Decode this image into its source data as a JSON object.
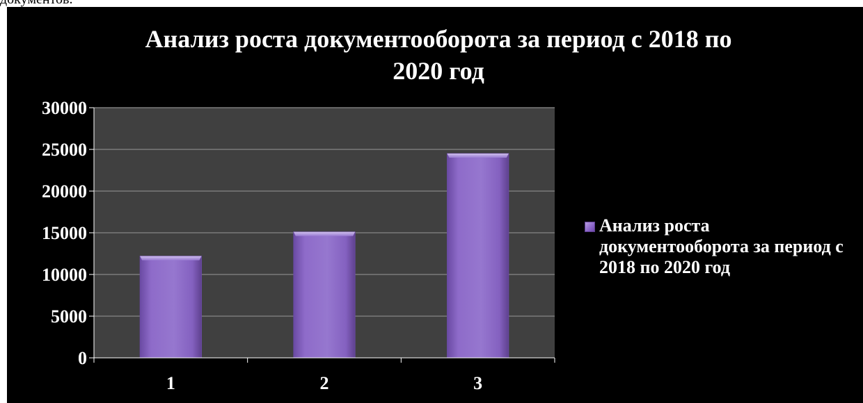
{
  "document": {
    "fragment_text": "документов."
  },
  "chart_data": {
    "type": "bar",
    "title_lines": [
      "Анализ роста документооборота за период с 2018 по",
      "2020 год"
    ],
    "categories": [
      "1",
      "2",
      "3"
    ],
    "series": [
      {
        "name": "Анализ роста документооборота за период с 2018 по 2020 год",
        "values": [
          12200,
          15100,
          24500
        ]
      }
    ],
    "ylim": [
      0,
      30000
    ],
    "yticks": [
      "0",
      "5000",
      "10000",
      "15000",
      "20000",
      "25000",
      "30000"
    ],
    "grid": true,
    "legend_position": "right",
    "colors": {
      "background": "#000000",
      "plot_area": "#404040",
      "bar": "#8e6bc9",
      "bar_light": "#b59ae0",
      "bar_dark": "#6a4aa3",
      "gridline": "#7a7a7a",
      "text": "#ffffff"
    }
  }
}
